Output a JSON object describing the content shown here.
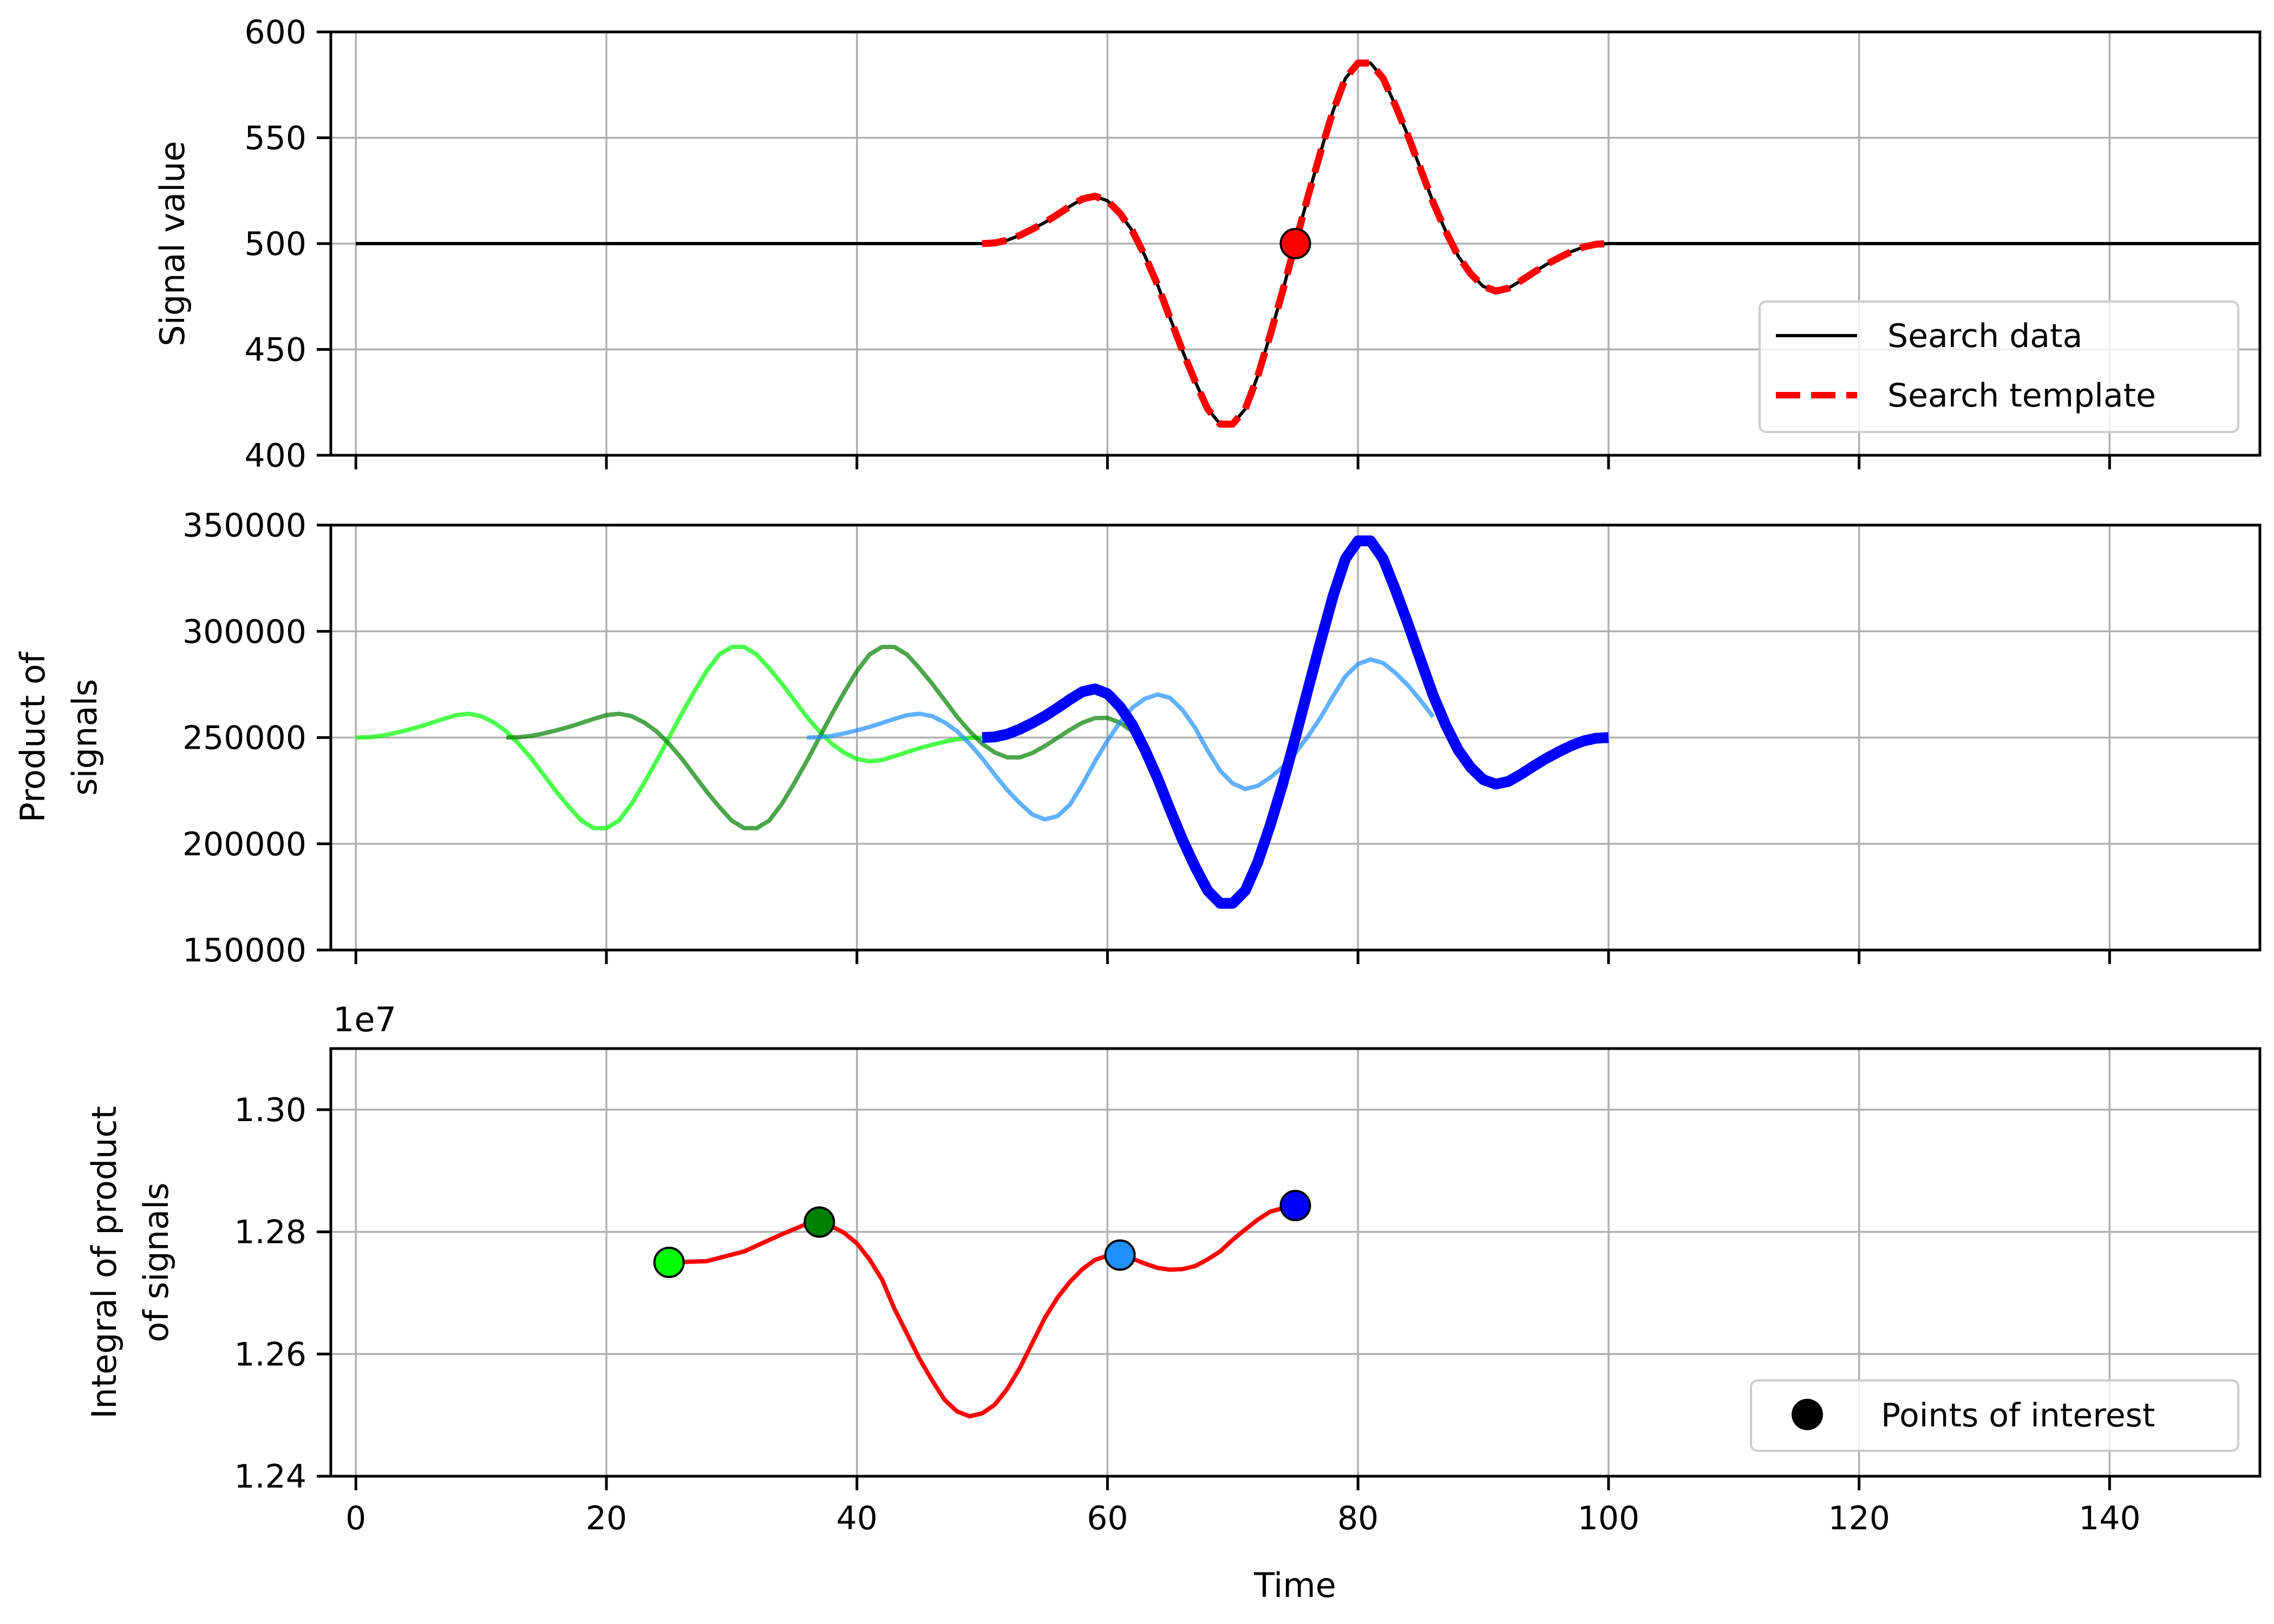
{
  "chart_data": [
    {
      "type": "line",
      "ylabel": "Signal value",
      "xlim": [
        -2,
        152
      ],
      "ylim": [
        400,
        600
      ],
      "yticks": [
        400,
        450,
        500,
        550,
        600
      ],
      "xticks": [
        0,
        20,
        40,
        60,
        80,
        100,
        120,
        140
      ],
      "grid": true,
      "legend_placement": "lower-right",
      "legend": [
        "Search data",
        "Search template"
      ],
      "series": [
        {
          "name": "Search data",
          "color": "#000000",
          "style": "solid",
          "x": [
            0,
            50,
            51,
            52,
            53,
            54,
            55,
            56,
            57,
            58,
            59,
            60,
            61,
            62,
            63,
            64,
            65,
            66,
            67,
            68,
            69,
            70,
            71,
            72,
            73,
            74,
            75,
            76,
            77,
            78,
            79,
            80,
            81,
            82,
            83,
            84,
            85,
            86,
            87,
            88,
            89,
            90,
            91,
            92,
            93,
            94,
            95,
            96,
            97,
            98,
            99,
            100,
            152
          ],
          "y": [
            500,
            500,
            500.3,
            501.6,
            503.9,
            506.8,
            510.0,
            513.7,
            517.6,
            521.1,
            522.4,
            520.2,
            514.3,
            505.9,
            494.1,
            480.5,
            464.8,
            449.2,
            434.9,
            421.9,
            414.7,
            414.7,
            421.9,
            437.5,
            457.0,
            477.9,
            500,
            522.1,
            543.0,
            562.5,
            578.1,
            585.3,
            585.3,
            578.1,
            565.1,
            550.8,
            535.2,
            519.5,
            505.9,
            494.1,
            485.7,
            479.8,
            477.6,
            478.9,
            482.4,
            486.3,
            490.0,
            493.2,
            496.1,
            498.4,
            499.7,
            500,
            500
          ]
        },
        {
          "name": "Search template",
          "color": "#ff0000",
          "style": "dashed",
          "x": [
            50,
            51,
            52,
            53,
            54,
            55,
            56,
            57,
            58,
            59,
            60,
            61,
            62,
            63,
            64,
            65,
            66,
            67,
            68,
            69,
            70,
            71,
            72,
            73,
            74,
            75,
            76,
            77,
            78,
            79,
            80,
            81,
            82,
            83,
            84,
            85,
            86,
            87,
            88,
            89,
            90,
            91,
            92,
            93,
            94,
            95,
            96,
            97,
            98,
            99,
            100
          ],
          "y": [
            500,
            500.3,
            501.6,
            503.9,
            506.8,
            510.0,
            513.7,
            517.6,
            521.1,
            522.4,
            520.2,
            514.3,
            505.9,
            494.1,
            480.5,
            464.8,
            449.2,
            434.9,
            421.9,
            414.7,
            414.7,
            421.9,
            437.5,
            457.0,
            477.9,
            500,
            522.1,
            543.0,
            562.5,
            578.1,
            585.3,
            585.3,
            578.1,
            565.1,
            550.8,
            535.2,
            519.5,
            505.9,
            494.1,
            485.7,
            479.8,
            477.6,
            478.9,
            482.4,
            486.3,
            490.0,
            493.2,
            496.1,
            498.4,
            499.7,
            500
          ]
        }
      ],
      "markers": [
        {
          "x": 75,
          "y": 500,
          "color": "#ff0000"
        }
      ]
    },
    {
      "type": "line",
      "ylabel": [
        "Product of",
        "signals"
      ],
      "xlim": [
        -2,
        152
      ],
      "ylim": [
        150000,
        350000
      ],
      "yticks": [
        150000,
        200000,
        250000,
        300000,
        350000
      ],
      "xticks": [
        0,
        20,
        40,
        60,
        80,
        100,
        120,
        140
      ],
      "grid": true,
      "product_windows": [
        {
          "center": 25,
          "color": "#00ff00",
          "opacity": 0.7,
          "weight": "thin"
        },
        {
          "center": 37,
          "color": "#008000",
          "opacity": 0.7,
          "weight": "thin"
        },
        {
          "center": 61,
          "color": "#1e90ff",
          "opacity": 0.7,
          "weight": "thin"
        },
        {
          "center": 75,
          "color": "#0000ff",
          "opacity": 1,
          "weight": "thick"
        }
      ]
    },
    {
      "type": "line",
      "ylabel": [
        "Integral of product",
        "of signals"
      ],
      "offset_text": "1e7",
      "xlabel": "Time",
      "xlim": [
        -2,
        152
      ],
      "ylim": [
        1.24,
        1.31
      ],
      "yticks": [
        1.24,
        1.26,
        1.28,
        1.3
      ],
      "ytick_labels": [
        "1.24",
        "1.26",
        "1.28",
        "1.30"
      ],
      "xticks": [
        0,
        20,
        40,
        60,
        80,
        100,
        120,
        140
      ],
      "xtick_labels": [
        "0",
        "20",
        "40",
        "60",
        "80",
        "100",
        "120",
        "140"
      ],
      "grid": true,
      "legend_placement": "lower-right",
      "legend": [
        "Points of interest"
      ],
      "series": [
        {
          "color": "#ff0000",
          "x": [
            25,
            28,
            31,
            34,
            36,
            37,
            38,
            39,
            40,
            41,
            42,
            43,
            44,
            45,
            46,
            47,
            48,
            49,
            50,
            51,
            52,
            53,
            54,
            55,
            56,
            57,
            58,
            59,
            60,
            61,
            62,
            63,
            64,
            65,
            66,
            67,
            68,
            69,
            70,
            71,
            72,
            73,
            74,
            75
          ],
          "y": [
            1.275,
            1.2752,
            1.2768,
            1.2796,
            1.2813,
            1.2816,
            1.2809,
            1.2798,
            1.2781,
            1.2755,
            1.2722,
            1.2674,
            1.2633,
            1.2592,
            1.2557,
            1.2525,
            1.2506,
            1.2498,
            1.2503,
            1.2517,
            1.2543,
            1.2577,
            1.2618,
            1.2659,
            1.2692,
            1.2718,
            1.2739,
            1.2754,
            1.2761,
            1.2762,
            1.2756,
            1.2748,
            1.2741,
            1.2738,
            1.2739,
            1.2744,
            1.2755,
            1.2768,
            1.2787,
            1.2804,
            1.282,
            1.2833,
            1.2839,
            1.2843
          ]
        }
      ],
      "points_of_interest": [
        {
          "x": 25,
          "y": 1.275,
          "color": "#00ff00"
        },
        {
          "x": 37,
          "y": 1.2816,
          "color": "#008000"
        },
        {
          "x": 61,
          "y": 1.2762,
          "color": "#1e90ff"
        },
        {
          "x": 75,
          "y": 1.2843,
          "color": "#0000ff"
        }
      ]
    }
  ]
}
